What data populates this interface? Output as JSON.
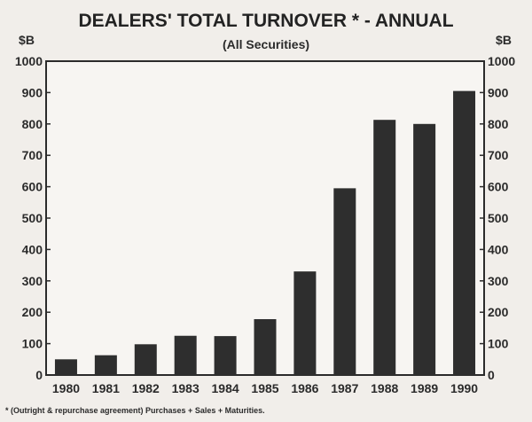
{
  "chart_data": {
    "type": "bar",
    "title": "DEALERS' TOTAL TURNOVER * - ANNUAL",
    "subtitle": "(All Securities)",
    "left_unit": "$B",
    "right_unit": "$B",
    "categories": [
      "1980",
      "1981",
      "1982",
      "1983",
      "1984",
      "1985",
      "1986",
      "1987",
      "1988",
      "1989",
      "1990"
    ],
    "values": [
      50,
      63,
      98,
      125,
      124,
      178,
      330,
      595,
      813,
      800,
      905
    ],
    "ylim": [
      0,
      1000
    ],
    "yticks": [
      0,
      100,
      200,
      300,
      400,
      500,
      600,
      700,
      800,
      900,
      1000
    ],
    "ytick_labels": [
      "0",
      "100",
      "200",
      "300",
      "400",
      "500",
      "600",
      "700",
      "800",
      "900",
      "1000"
    ],
    "footnote": "* (Outright & repurchase agreement) Purchases + Sales + Maturities.",
    "bar_color": "#2e2e2e",
    "grid": false
  }
}
